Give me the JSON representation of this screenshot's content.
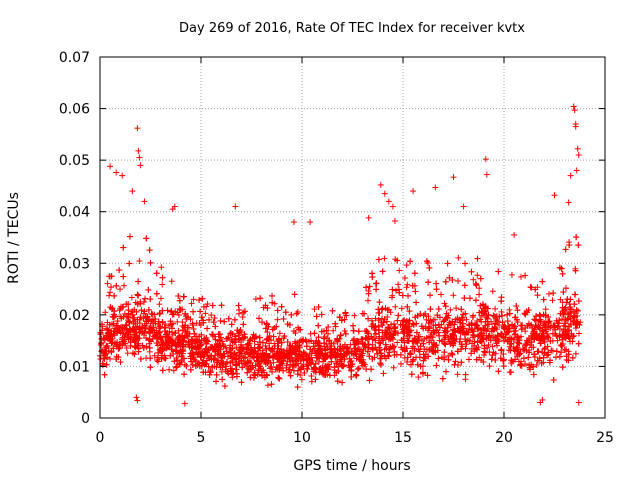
{
  "chart_data": {
    "type": "scatter",
    "title": "Day 269 of 2016, Rate Of TEC Index for receiver kvtx",
    "xlabel": "GPS time / hours",
    "ylabel": "ROTI / TECUs",
    "xlim": [
      0,
      25
    ],
    "ylim": [
      0,
      0.07
    ],
    "x_ticks": [
      0,
      5,
      10,
      15,
      20,
      25
    ],
    "x_tick_labels": [
      "0",
      "5",
      "10",
      "15",
      "20",
      "25"
    ],
    "y_ticks": [
      0,
      0.01,
      0.02,
      0.03,
      0.04,
      0.05,
      0.06,
      0.07
    ],
    "y_tick_labels": [
      "0",
      "0.01",
      "0.02",
      "0.03",
      "0.04",
      "0.05",
      "0.06",
      "0.07"
    ],
    "grid": true,
    "marker": "plus",
    "color": "#ff0000",
    "series": [
      {
        "name": "ROTI",
        "profile": {
          "hours": [
            0.0,
            0.5,
            1.0,
            1.5,
            2.0,
            2.5,
            3.0,
            4.0,
            5.0,
            6.0,
            7.0,
            8.0,
            9.0,
            10.0,
            11.0,
            12.0,
            13.0,
            13.5,
            14.0,
            15.0,
            16.0,
            17.0,
            18.0,
            19.0,
            20.0,
            21.0,
            22.0,
            22.5,
            23.0,
            23.5,
            23.8
          ],
          "typical_roti": [
            0.014,
            0.015,
            0.016,
            0.017,
            0.017,
            0.016,
            0.015,
            0.014,
            0.013,
            0.012,
            0.012,
            0.012,
            0.012,
            0.012,
            0.012,
            0.012,
            0.013,
            0.015,
            0.016,
            0.015,
            0.015,
            0.015,
            0.016,
            0.016,
            0.015,
            0.015,
            0.015,
            0.016,
            0.017,
            0.018,
            0.018
          ],
          "upper_roti": [
            0.024,
            0.028,
            0.032,
            0.036,
            0.038,
            0.033,
            0.03,
            0.026,
            0.024,
            0.022,
            0.022,
            0.024,
            0.024,
            0.024,
            0.023,
            0.022,
            0.024,
            0.03,
            0.034,
            0.03,
            0.032,
            0.03,
            0.032,
            0.032,
            0.028,
            0.028,
            0.03,
            0.032,
            0.034,
            0.036,
            0.034
          ],
          "lower_roti": [
            0.008,
            0.007,
            0.007,
            0.007,
            0.007,
            0.007,
            0.007,
            0.006,
            0.005,
            0.005,
            0.005,
            0.005,
            0.005,
            0.005,
            0.005,
            0.005,
            0.005,
            0.006,
            0.006,
            0.006,
            0.006,
            0.006,
            0.006,
            0.006,
            0.006,
            0.006,
            0.006,
            0.005,
            0.006,
            0.007,
            0.008
          ]
        },
        "notable_points": [
          [
            0.5,
            0.0488
          ],
          [
            0.8,
            0.0476
          ],
          [
            1.1,
            0.047
          ],
          [
            1.6,
            0.044
          ],
          [
            1.85,
            0.0562
          ],
          [
            1.9,
            0.0518
          ],
          [
            1.95,
            0.0505
          ],
          [
            2.0,
            0.049
          ],
          [
            1.8,
            0.004
          ],
          [
            1.85,
            0.0034
          ],
          [
            2.2,
            0.042
          ],
          [
            3.6,
            0.0405
          ],
          [
            3.7,
            0.041
          ],
          [
            4.2,
            0.0028
          ],
          [
            6.7,
            0.041
          ],
          [
            9.6,
            0.038
          ],
          [
            10.4,
            0.038
          ],
          [
            13.3,
            0.0388
          ],
          [
            13.9,
            0.0452
          ],
          [
            14.1,
            0.0435
          ],
          [
            14.3,
            0.042
          ],
          [
            14.5,
            0.041
          ],
          [
            14.6,
            0.0382
          ],
          [
            15.5,
            0.044
          ],
          [
            16.6,
            0.0447
          ],
          [
            17.5,
            0.0467
          ],
          [
            18.0,
            0.041
          ],
          [
            19.1,
            0.0502
          ],
          [
            19.15,
            0.0472
          ],
          [
            20.5,
            0.0355
          ],
          [
            21.8,
            0.003
          ],
          [
            21.9,
            0.0035
          ],
          [
            22.5,
            0.0432
          ],
          [
            23.2,
            0.0418
          ],
          [
            23.3,
            0.047
          ],
          [
            23.45,
            0.0604
          ],
          [
            23.5,
            0.0597
          ],
          [
            23.55,
            0.057
          ],
          [
            23.55,
            0.0565
          ],
          [
            23.65,
            0.0522
          ],
          [
            23.7,
            0.051
          ],
          [
            23.6,
            0.048
          ],
          [
            23.7,
            0.003
          ]
        ]
      }
    ]
  }
}
